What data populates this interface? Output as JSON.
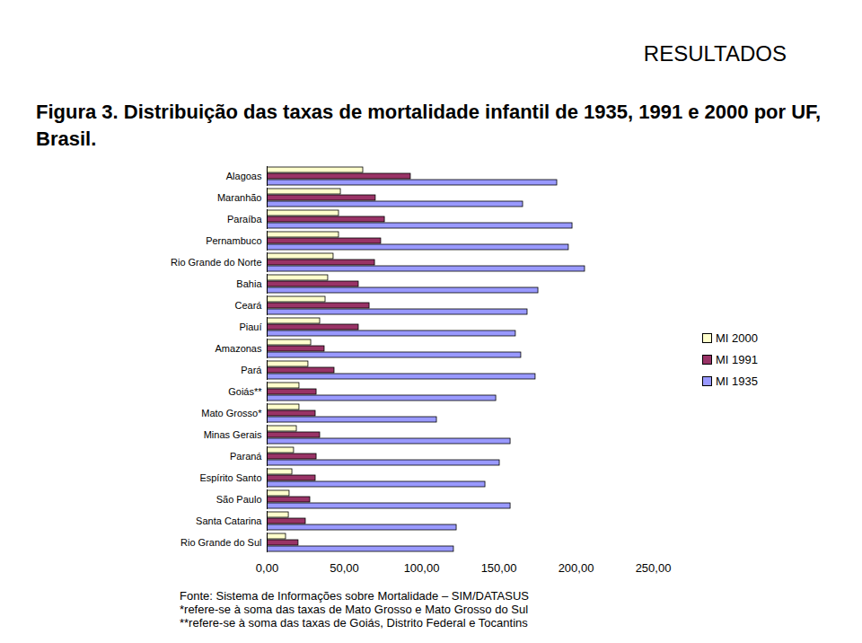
{
  "chart_data": {
    "type": "bar",
    "orientation": "horizontal",
    "header": "RESULTADOS",
    "title": "Figura 3. Distribuição das taxas de mortalidade infantil de 1935, 1991 e 2000 por UF, Brasil.",
    "notes": [
      "Fonte: Sistema de Informações sobre Mortalidade – SIM/DATASUS",
      "*refere-se à soma das taxas de Mato Grosso e Mato Grosso do Sul",
      "**refere-se à soma das taxas de Goiás, Distrito Federal e Tocantins"
    ],
    "categories": [
      "Alagoas",
      "Maranhão",
      "Paraíba",
      "Pernambuco",
      "Rio Grande do Norte",
      "Bahia",
      "Ceará",
      "Piauí",
      "Amazonas",
      "Pará",
      "Goiás**",
      "Mato Grosso*",
      "Minas Gerais",
      "Paraná",
      "Espírito Santo",
      "São Paulo",
      "Santa Catarina",
      "Rio Grande do Sul"
    ],
    "series": [
      {
        "name": "MI 2000",
        "color": "#ffffcc",
        "values": [
          62.2,
          47.7,
          46.5,
          46.5,
          43.0,
          39.5,
          37.8,
          34.3,
          28.5,
          26.7,
          20.9,
          20.9,
          19.2,
          17.4,
          16.3,
          14.5,
          14.0,
          12.2
        ]
      },
      {
        "name": "MI 1991",
        "color": "#993366",
        "values": [
          93.0,
          70.3,
          76.2,
          73.8,
          69.8,
          59.3,
          66.3,
          59.3,
          37.2,
          43.6,
          32.0,
          31.4,
          34.3,
          32.0,
          31.4,
          27.9,
          25.0,
          20.3
        ]
      },
      {
        "name": "MI 1935",
        "color": "#9999ff",
        "values": [
          187.8,
          165.7,
          197.7,
          195.3,
          205.8,
          175.6,
          168.6,
          161.0,
          164.5,
          173.8,
          148.3,
          109.9,
          157.6,
          150.6,
          141.3,
          157.6,
          122.7,
          120.9
        ]
      }
    ],
    "xlim": [
      0,
      250
    ],
    "xticks": [
      {
        "value": 0,
        "label": "0,00"
      },
      {
        "value": 50,
        "label": "50,00"
      },
      {
        "value": 100,
        "label": "100,00"
      },
      {
        "value": 150,
        "label": "150,00"
      },
      {
        "value": 200,
        "label": "200,00"
      },
      {
        "value": 250,
        "label": "250,00"
      }
    ],
    "grid": false,
    "legend": "right"
  }
}
